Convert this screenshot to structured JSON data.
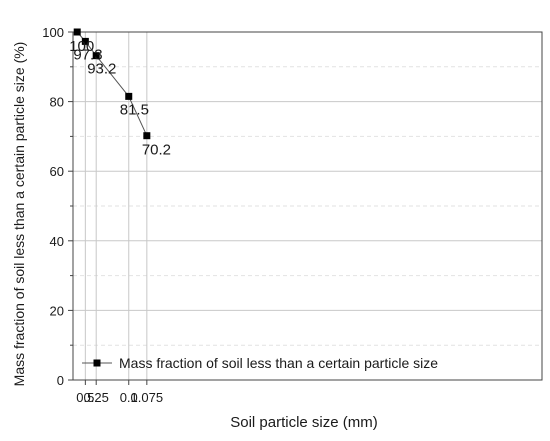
{
  "chart_data": {
    "type": "line",
    "x_scale": "reciprocal",
    "x": [
      2,
      0.5,
      0.25,
      0.1,
      0.075
    ],
    "xticks": [
      {
        "value": 0.5,
        "label": "0.5"
      },
      {
        "value": 0.25,
        "label": "0.25"
      },
      {
        "value": 0.1,
        "label": "0.1"
      },
      {
        "value": 0.075,
        "label": "0.075"
      }
    ],
    "series": [
      {
        "name": "Mass fraction of soil less than a certain particle size",
        "values": [
          100,
          97.3,
          93.2,
          81.5,
          70.2
        ],
        "data_labels": [
          "100",
          "97.3",
          "93.2",
          "81.5",
          "70.2"
        ],
        "marker": "square",
        "color": "#000000"
      }
    ],
    "xlabel": "Soil particle size (mm)",
    "ylabel": "Mass fraction of soil less than a certain particle size (%)",
    "ylim": [
      0,
      100
    ],
    "yticks": [
      0,
      20,
      40,
      60,
      80,
      100
    ],
    "grid": true,
    "legend_position": "bottom-left"
  }
}
